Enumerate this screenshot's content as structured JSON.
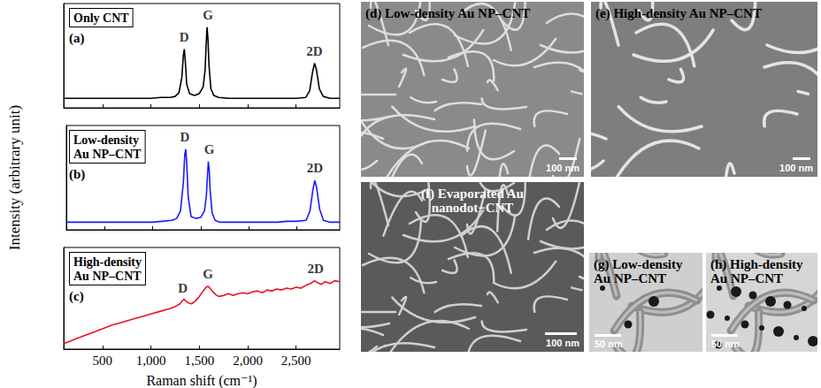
{
  "chart_data": [
    {
      "type": "line",
      "title": "Only CNT",
      "panel_label": "(a)",
      "x": [
        100,
        200,
        300,
        400,
        500,
        600,
        700,
        800,
        900,
        1000,
        1100,
        1200,
        1250,
        1290,
        1320,
        1335,
        1345,
        1355,
        1370,
        1400,
        1450,
        1500,
        1540,
        1560,
        1570,
        1580,
        1590,
        1600,
        1620,
        1650,
        1700,
        1800,
        1900,
        2000,
        2100,
        2200,
        2300,
        2400,
        2500,
        2600,
        2640,
        2670,
        2690,
        2710,
        2740,
        2780,
        2850,
        2950
      ],
      "values": [
        0.1,
        0.1,
        0.1,
        0.1,
        0.1,
        0.1,
        0.1,
        0.1,
        0.1,
        0.1,
        0.11,
        0.11,
        0.12,
        0.16,
        0.32,
        0.55,
        0.62,
        0.5,
        0.25,
        0.15,
        0.13,
        0.15,
        0.22,
        0.4,
        0.65,
        0.85,
        0.72,
        0.45,
        0.2,
        0.13,
        0.11,
        0.1,
        0.1,
        0.1,
        0.1,
        0.1,
        0.1,
        0.1,
        0.1,
        0.11,
        0.18,
        0.38,
        0.47,
        0.4,
        0.2,
        0.12,
        0.1,
        0.1
      ],
      "color": "#000000",
      "marker": "none",
      "line_style": "solid",
      "xlim": [
        100,
        2950
      ],
      "xticks": [
        500,
        1000,
        1500,
        2000,
        2500
      ],
      "ylim": [
        0,
        1.1
      ],
      "grid": false,
      "tick_labels": false,
      "annotations": [
        {
          "text": "D",
          "x": 1345,
          "y": 0.75
        },
        {
          "text": "G",
          "x": 1590,
          "y": 0.98
        },
        {
          "text": "2D",
          "x": 2690,
          "y": 0.6
        }
      ]
    },
    {
      "type": "line",
      "title": "Low-density Au NP–CNT",
      "panel_label": "(b)",
      "x": [
        100,
        200,
        300,
        400,
        500,
        600,
        700,
        800,
        900,
        1000,
        1100,
        1200,
        1250,
        1290,
        1320,
        1335,
        1345,
        1355,
        1370,
        1400,
        1450,
        1500,
        1540,
        1560,
        1570,
        1580,
        1590,
        1600,
        1620,
        1650,
        1700,
        1800,
        1900,
        2000,
        2100,
        2200,
        2300,
        2400,
        2500,
        2600,
        2640,
        2670,
        2690,
        2710,
        2740,
        2780,
        2850,
        2950
      ],
      "values": [
        0.08,
        0.08,
        0.08,
        0.08,
        0.08,
        0.08,
        0.08,
        0.08,
        0.08,
        0.08,
        0.09,
        0.1,
        0.12,
        0.2,
        0.5,
        0.8,
        0.85,
        0.7,
        0.35,
        0.14,
        0.12,
        0.13,
        0.2,
        0.36,
        0.55,
        0.72,
        0.62,
        0.4,
        0.18,
        0.1,
        0.08,
        0.08,
        0.08,
        0.08,
        0.08,
        0.08,
        0.08,
        0.09,
        0.09,
        0.1,
        0.2,
        0.42,
        0.52,
        0.44,
        0.22,
        0.1,
        0.08,
        0.08
      ],
      "color": "#1a1aff",
      "marker": "none",
      "line_style": "solid",
      "xlim": [
        100,
        2950
      ],
      "xticks": [
        500,
        1000,
        1500,
        2000,
        2500
      ],
      "ylim": [
        0,
        1.1
      ],
      "grid": false,
      "tick_labels": false,
      "ylabel": "Intensity (arbitrary unit)",
      "annotations": [
        {
          "text": "D",
          "x": 1335,
          "y": 0.98
        },
        {
          "text": "G",
          "x": 1590,
          "y": 0.85
        },
        {
          "text": "2D",
          "x": 2690,
          "y": 0.65
        }
      ]
    },
    {
      "type": "line",
      "title": "High-density Au NP–CNT",
      "panel_label": "(c)",
      "x": [
        100,
        150,
        200,
        300,
        400,
        500,
        600,
        700,
        800,
        900,
        1000,
        1100,
        1200,
        1250,
        1300,
        1330,
        1345,
        1360,
        1390,
        1420,
        1460,
        1500,
        1540,
        1570,
        1590,
        1610,
        1640,
        1670,
        1700,
        1750,
        1800,
        1850,
        1900,
        1950,
        2000,
        2050,
        2100,
        2150,
        2200,
        2250,
        2300,
        2350,
        2400,
        2450,
        2500,
        2550,
        2600,
        2650,
        2690,
        2720,
        2760,
        2800,
        2850,
        2900,
        2950
      ],
      "values": [
        0.06,
        0.08,
        0.1,
        0.14,
        0.18,
        0.22,
        0.26,
        0.29,
        0.32,
        0.35,
        0.38,
        0.41,
        0.44,
        0.46,
        0.49,
        0.53,
        0.54,
        0.52,
        0.5,
        0.49,
        0.52,
        0.57,
        0.63,
        0.67,
        0.68,
        0.66,
        0.62,
        0.59,
        0.57,
        0.58,
        0.6,
        0.58,
        0.6,
        0.61,
        0.6,
        0.62,
        0.63,
        0.61,
        0.64,
        0.63,
        0.65,
        0.64,
        0.66,
        0.65,
        0.67,
        0.66,
        0.69,
        0.71,
        0.74,
        0.72,
        0.7,
        0.73,
        0.71,
        0.74,
        0.73
      ],
      "color": "#e8141e",
      "marker": "none",
      "line_style": "solid",
      "xlim": [
        100,
        2950
      ],
      "xticks": [
        500,
        1000,
        1500,
        2000,
        2500
      ],
      "ylim": [
        0,
        1.1
      ],
      "grid": false,
      "tick_labels": "x",
      "xlabel": "Raman shift (cm⁻¹)",
      "annotations": [
        {
          "text": "D",
          "x": 1330,
          "y": 0.66
        },
        {
          "text": "G",
          "x": 1590,
          "y": 0.81
        },
        {
          "text": "2D",
          "x": 2700,
          "y": 0.87
        }
      ]
    }
  ],
  "images": [
    {
      "panel_label": "(d)",
      "title": "Low-density Au NP–CNT",
      "scale_bar": "100 nm"
    },
    {
      "panel_label": "(e)",
      "title": "High-density Au NP–CNT",
      "scale_bar": "100 nm"
    },
    {
      "panel_label": "(f)",
      "title": "Evaporated Au nanodot−CNT",
      "scale_bar": "100 nm"
    },
    {
      "panel_label": "(g)",
      "title": "Low-density Au NP–CNT",
      "scale_bar": "50 nm"
    },
    {
      "panel_label": "(h)",
      "title": "High-density Au NP–CNT",
      "scale_bar": "50 nm"
    }
  ]
}
